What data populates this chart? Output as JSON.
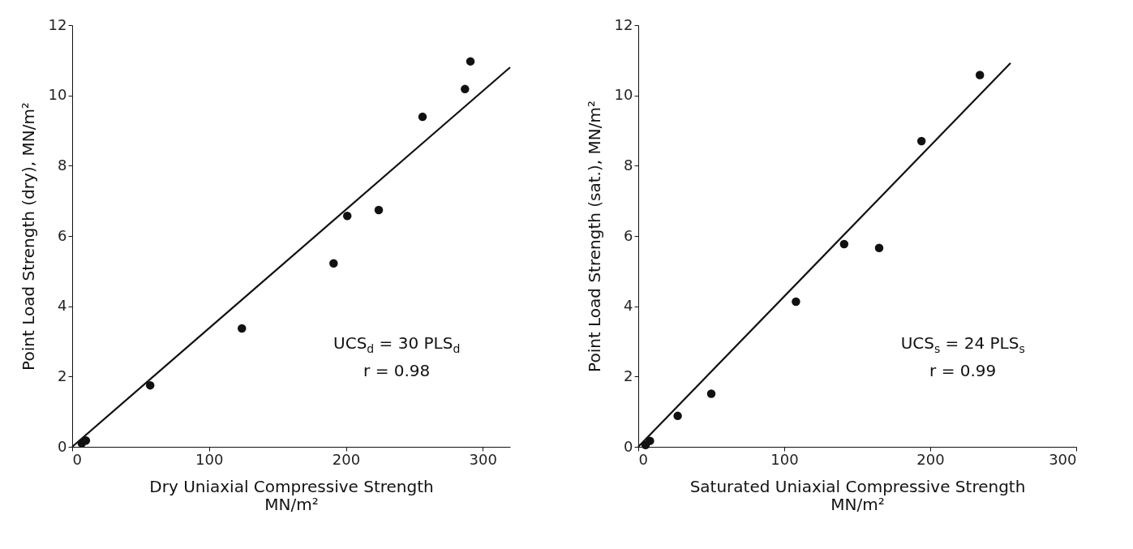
{
  "chart_data": [
    {
      "type": "scatter",
      "xlabel": "Dry Uniaxial Compressive Strength\nMN/m²",
      "ylabel": "Point Load Strength (dry), MN/m²",
      "xlim": [
        0,
        320
      ],
      "ylim": [
        0,
        12
      ],
      "xticks": [
        0,
        100,
        200,
        300
      ],
      "yticks": [
        0,
        2,
        4,
        6,
        8,
        10,
        12
      ],
      "annotations": [
        "UCS$_{d}$ = 30 PLS$_{d}$",
        "r = 0.98"
      ],
      "series": [
        {
          "marker": "circle",
          "color": "#111111",
          "x": [
            7,
            10,
            57,
            124,
            191,
            201,
            224,
            256,
            287,
            291
          ],
          "values": [
            0.1,
            0.18,
            1.75,
            3.37,
            5.22,
            6.57,
            6.74,
            9.39,
            10.18,
            10.97
          ]
        },
        {
          "type": "line",
          "color": "#111111",
          "x": [
            0,
            320
          ],
          "values": [
            0,
            10.8
          ]
        }
      ]
    },
    {
      "type": "scatter",
      "xlabel": "Saturated Uniaxial Compressive Strength\nMN/m²",
      "ylabel": "Point Load Strength (sat.), MN/m²",
      "xlim": [
        0,
        300
      ],
      "ylim": [
        0,
        12
      ],
      "xticks": [
        0,
        100,
        200,
        300
      ],
      "yticks": [
        0,
        2,
        4,
        6,
        8,
        10,
        12
      ],
      "annotations": [
        "UCS$_{s}$ = 24 PLS$_{s}$",
        "r = 0.99"
      ],
      "series": [
        {
          "marker": "circle",
          "color": "#111111",
          "x": [
            5,
            8,
            27,
            50,
            108,
            141,
            165,
            194,
            234
          ],
          "values": [
            0.05,
            0.17,
            0.88,
            1.51,
            4.13,
            5.77,
            5.66,
            8.7,
            10.58
          ]
        },
        {
          "type": "line",
          "color": "#111111",
          "x": [
            0,
            255
          ],
          "values": [
            0,
            10.92
          ]
        }
      ]
    }
  ]
}
